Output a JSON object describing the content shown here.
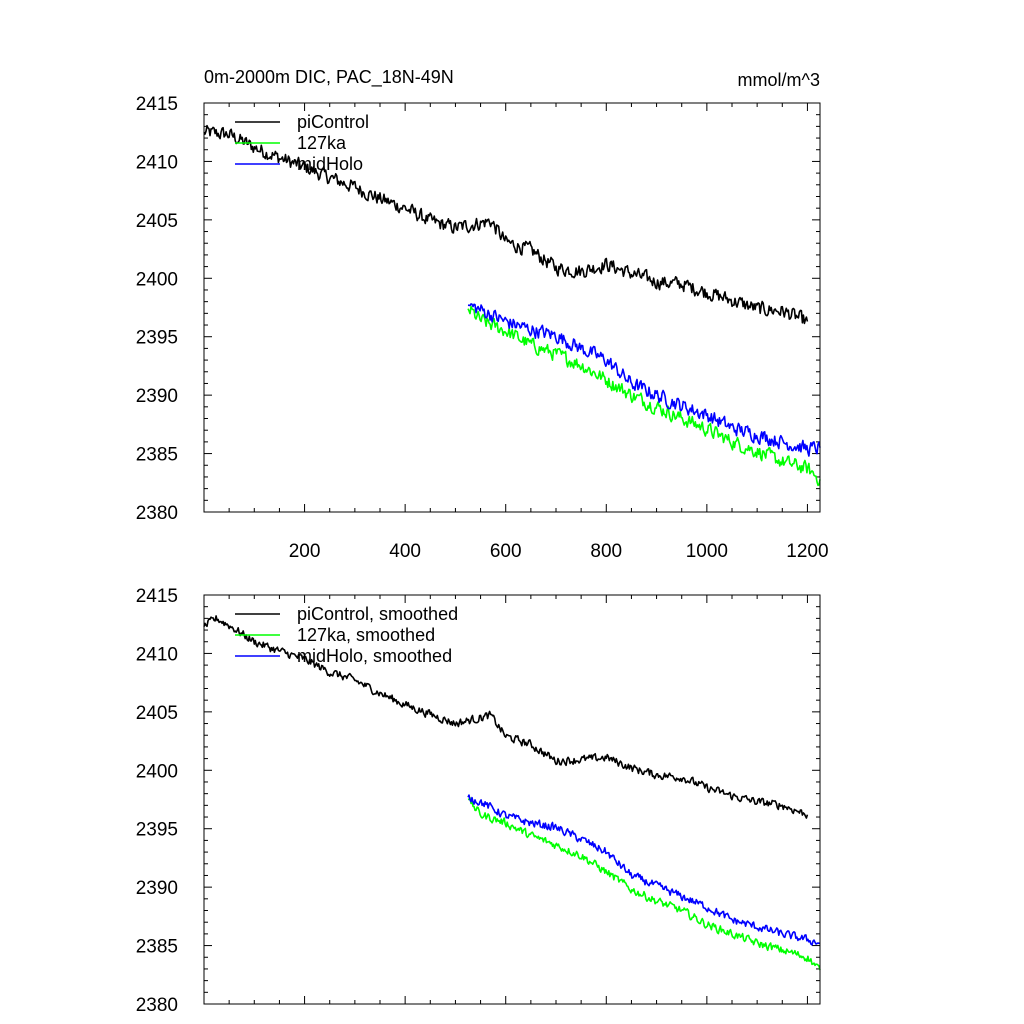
{
  "chart_data": [
    {
      "type": "line",
      "title": "0m-2000m DIC, PAC_18N-49N",
      "units": "mmol/m^3",
      "xlabel": "",
      "ylabel": "",
      "xlim": [
        0,
        1225
      ],
      "ylim": [
        2380,
        2415
      ],
      "x_ticks": [
        200,
        400,
        600,
        800,
        1000,
        1200
      ],
      "x_tick_labels": [
        "200",
        "400",
        "600",
        "800",
        "1000",
        "1200"
      ],
      "y_ticks": [
        2380,
        2385,
        2390,
        2395,
        2400,
        2405,
        2410,
        2415
      ],
      "y_tick_labels": [
        "2380",
        "2385",
        "2390",
        "2395",
        "2400",
        "2405",
        "2410",
        "2415"
      ],
      "legend_position": "top-left",
      "series": [
        {
          "name": "piControl",
          "color": "#000000",
          "x": [
            0,
            50,
            100,
            150,
            200,
            250,
            300,
            350,
            400,
            450,
            500,
            570,
            600,
            650,
            700,
            750,
            800,
            850,
            900,
            950,
            1000,
            1050,
            1100,
            1150,
            1200
          ],
          "values": [
            2412.5,
            2412.3,
            2411.2,
            2410.3,
            2409.5,
            2408.6,
            2407.8,
            2406.8,
            2406.0,
            2404.9,
            2404.3,
            2404.9,
            2403.1,
            2402.4,
            2400.9,
            2400.6,
            2401.2,
            2400.4,
            2399.7,
            2399.5,
            2398.8,
            2398.1,
            2397.4,
            2397.2,
            2396.3
          ]
        },
        {
          "name": "127ka",
          "color": "#00ff00",
          "x": [
            525,
            550,
            600,
            650,
            700,
            750,
            800,
            850,
            900,
            950,
            1000,
            1050,
            1100,
            1150,
            1200,
            1225
          ],
          "values": [
            2397.4,
            2396.4,
            2395.5,
            2394.3,
            2393.5,
            2392.6,
            2391.3,
            2390.0,
            2389.0,
            2388.0,
            2387.1,
            2386.0,
            2385.2,
            2384.3,
            2383.7,
            2382.8
          ]
        },
        {
          "name": "midHolo",
          "color": "#0000ff",
          "x": [
            525,
            550,
            600,
            650,
            700,
            750,
            800,
            850,
            900,
            950,
            1000,
            1050,
            1100,
            1150,
            1200,
            1225
          ],
          "values": [
            2397.7,
            2397.3,
            2396.3,
            2395.6,
            2395.1,
            2394.0,
            2393.0,
            2391.0,
            2390.0,
            2389.1,
            2388.3,
            2387.2,
            2386.6,
            2386.0,
            2385.4,
            2385.5
          ]
        }
      ]
    },
    {
      "type": "line",
      "title": "",
      "xlabel": "",
      "ylabel": "",
      "xlim": [
        0,
        1225
      ],
      "ylim": [
        2380,
        2415
      ],
      "x_ticks": [
        200,
        400,
        600,
        800,
        1000,
        1200
      ],
      "y_ticks": [
        2380,
        2385,
        2390,
        2395,
        2400,
        2405,
        2410,
        2415
      ],
      "y_tick_labels": [
        "2380",
        "2385",
        "2390",
        "2395",
        "2400",
        "2405",
        "2410",
        "2415"
      ],
      "legend_position": "top-left",
      "series": [
        {
          "name": "piControl, smoothed",
          "color": "#000000",
          "x": [
            0,
            25,
            50,
            100,
            150,
            200,
            250,
            300,
            350,
            400,
            450,
            500,
            570,
            600,
            650,
            700,
            750,
            800,
            850,
            900,
            950,
            1000,
            1050,
            1100,
            1150,
            1200
          ],
          "values": [
            2412.3,
            2413.0,
            2412.4,
            2411.0,
            2410.2,
            2409.5,
            2408.4,
            2407.7,
            2406.6,
            2405.6,
            2404.8,
            2404.0,
            2404.7,
            2402.9,
            2402.2,
            2400.8,
            2400.9,
            2401.1,
            2400.2,
            2399.6,
            2399.4,
            2398.5,
            2397.8,
            2397.3,
            2397.0,
            2396.2
          ]
        },
        {
          "name": "127ka, smoothed",
          "color": "#00ff00",
          "x": [
            525,
            550,
            600,
            650,
            700,
            750,
            800,
            850,
            900,
            950,
            1000,
            1050,
            1100,
            1150,
            1200,
            1225
          ],
          "values": [
            2397.5,
            2396.2,
            2395.5,
            2394.4,
            2393.6,
            2392.7,
            2391.3,
            2389.8,
            2388.8,
            2388.0,
            2386.8,
            2386.0,
            2385.2,
            2384.6,
            2384.0,
            2382.9
          ]
        },
        {
          "name": "midHolo, smoothed",
          "color": "#0000ff",
          "x": [
            525,
            550,
            600,
            650,
            700,
            750,
            800,
            850,
            900,
            950,
            1000,
            1050,
            1100,
            1150,
            1200,
            1225
          ],
          "values": [
            2397.7,
            2397.3,
            2396.1,
            2395.5,
            2395.1,
            2394.1,
            2393.0,
            2391.0,
            2390.1,
            2389.2,
            2388.3,
            2387.2,
            2386.6,
            2386.0,
            2385.5,
            2385.2
          ]
        }
      ]
    }
  ]
}
